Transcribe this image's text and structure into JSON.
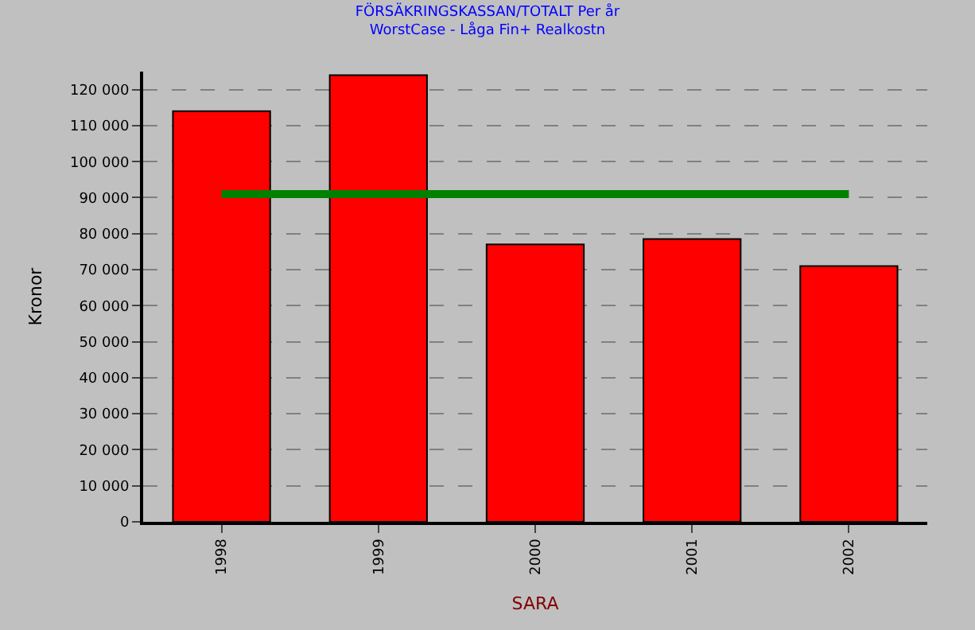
{
  "chart_data": {
    "type": "bar",
    "title": "FÖRSÄKRINGSKASSAN/TOTALT Per år",
    "subtitle": "WorstCase - Låga Fin+ Realkostn",
    "xlabel": "SARA",
    "ylabel": "Kronor",
    "categories": [
      "1998",
      "1999",
      "2000",
      "2001",
      "2002"
    ],
    "series": [
      {
        "color": "#ff0000",
        "values": [
          114000,
          124000,
          77000,
          78500,
          71000
        ]
      },
      {
        "type": "line",
        "color": "#008000",
        "values": [
          91000,
          91000,
          91000,
          91000,
          91000
        ]
      }
    ],
    "ylim": [
      0,
      125000
    ],
    "yticks": [
      {
        "value": 0,
        "label": "0"
      },
      {
        "value": 10000,
        "label": "10 000"
      },
      {
        "value": 20000,
        "label": "20 000"
      },
      {
        "value": 30000,
        "label": "30 000"
      },
      {
        "value": 40000,
        "label": "40 000"
      },
      {
        "value": 50000,
        "label": "50 000"
      },
      {
        "value": 60000,
        "label": "60 000"
      },
      {
        "value": 70000,
        "label": "70 000"
      },
      {
        "value": 80000,
        "label": "80 000"
      },
      {
        "value": 90000,
        "label": "90 000"
      },
      {
        "value": 100000,
        "label": "100 000"
      },
      {
        "value": 110000,
        "label": "110 000"
      },
      {
        "value": 120000,
        "label": "120 000"
      }
    ],
    "grid": "y"
  }
}
